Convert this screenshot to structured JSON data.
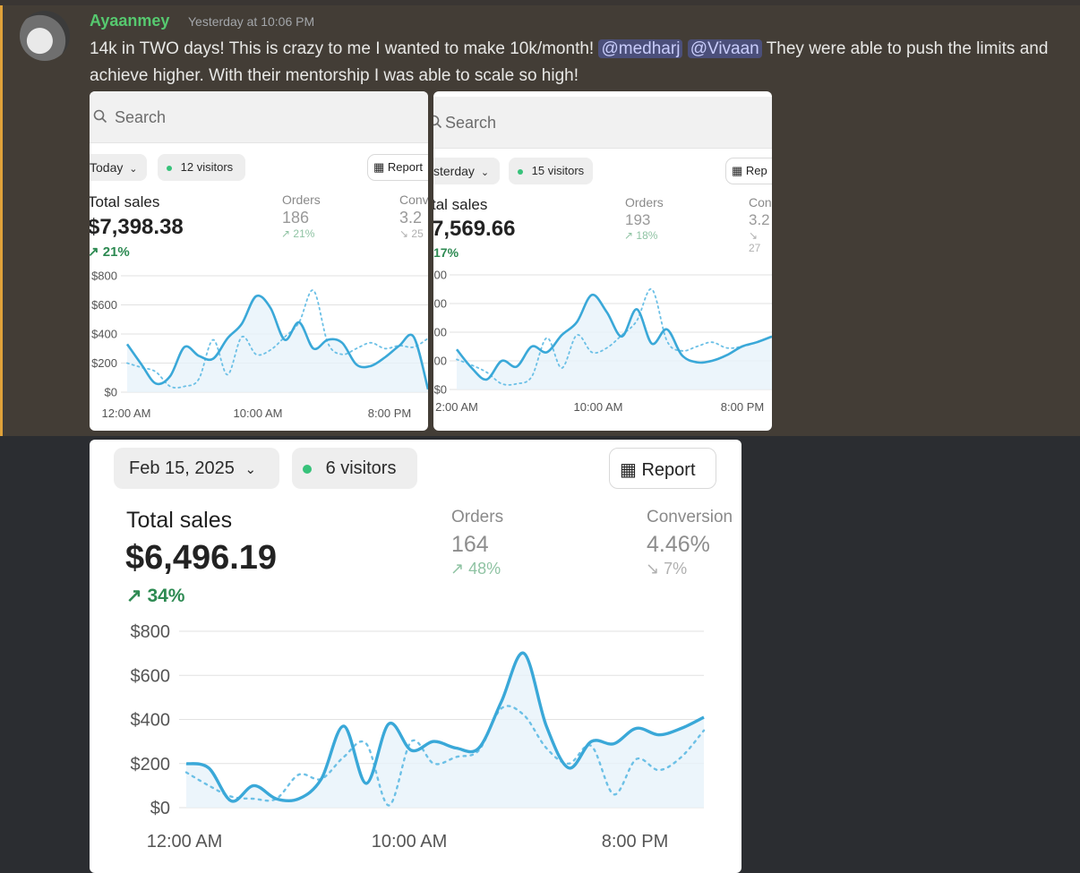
{
  "message": {
    "author": "Ayaanmey",
    "timestamp": "Yesterday at 10:06 PM",
    "text_part1": "14k in TWO days! This is crazy to me I wanted to make 10k/month!",
    "mention1": "@medharj",
    "mention2": "@Vivaan",
    "text_part2": "They were able to push the limits and achieve higher. With their mentorship I was able to scale so high!",
    "accent_color": "#e0a23a",
    "author_color": "#56c96f"
  },
  "shot1": {
    "search_placeholder": "Search",
    "date_filter": "Today",
    "visitors": "12 visitors",
    "report": "Report",
    "total_sales_label": "Total sales",
    "total_sales_value": "$7,398.38",
    "total_sales_change": "21%",
    "orders_label": "Orders",
    "orders_value": "186",
    "orders_change": "21%",
    "conversion_label": "Conv",
    "conversion_value": "3.2",
    "conversion_change": "25",
    "y_ticks": [
      "$800",
      "$600",
      "$400",
      "$200",
      "$0"
    ],
    "x_ticks": [
      "12:00 AM",
      "10:00 AM",
      "8:00 PM"
    ]
  },
  "shot2": {
    "search_placeholder": "Search",
    "date_filter": "sterday",
    "visitors": "15 visitors",
    "report": "Rep",
    "total_sales_label": "tal sales",
    "total_sales_value": "7,569.66",
    "total_sales_change": "17%",
    "orders_label": "Orders",
    "orders_value": "193",
    "orders_change": "18%",
    "conversion_label": "Con",
    "conversion_value": "3.2",
    "conversion_change": "27",
    "y_ticks": [
      "00",
      "00",
      "00",
      "00",
      "$0"
    ],
    "x_ticks": [
      "2:00 AM",
      "10:00 AM",
      "8:00 PM"
    ]
  },
  "shot3": {
    "date_filter": "Feb 15, 2025",
    "visitors": "6 visitors",
    "report": "Report",
    "total_sales_label": "Total sales",
    "total_sales_value": "$6,496.19",
    "total_sales_change": "34%",
    "orders_label": "Orders",
    "orders_value": "164",
    "orders_change": "48%",
    "conversion_label": "Conversion",
    "conversion_value": "4.46%",
    "conversion_change": "7%",
    "y_ticks": [
      "$800",
      "$600",
      "$400",
      "$200",
      "$0"
    ],
    "x_ticks": [
      "12:00 AM",
      "10:00 AM",
      "8:00 PM"
    ]
  },
  "chart_data": [
    {
      "type": "line",
      "ylim": [
        0,
        800
      ],
      "series": [
        {
          "values": [
            330,
            190,
            60,
            110,
            310,
            250,
            230,
            370,
            470,
            660,
            580,
            360,
            480,
            300,
            360,
            340,
            190,
            180,
            240,
            320,
            380,
            20
          ]
        },
        {
          "values": [
            200,
            170,
            140,
            40,
            40,
            90,
            360,
            120,
            380,
            260,
            290,
            380,
            480,
            700,
            340,
            260,
            300,
            340,
            300,
            320,
            310,
            370
          ]
        }
      ]
    },
    {
      "type": "line",
      "ylim": [
        0,
        800
      ],
      "series": [
        {
          "values": [
            280,
            150,
            70,
            200,
            160,
            300,
            260,
            380,
            470,
            660,
            540,
            370,
            560,
            320,
            420,
            240,
            190,
            200,
            240,
            300,
            330,
            370
          ]
        },
        {
          "values": [
            210,
            170,
            120,
            40,
            40,
            90,
            360,
            150,
            380,
            260,
            290,
            380,
            480,
            700,
            340,
            270,
            300,
            330,
            290,
            300,
            330,
            370
          ]
        }
      ]
    },
    {
      "type": "line",
      "ylim": [
        0,
        800
      ],
      "series": [
        {
          "values": [
            200,
            180,
            30,
            100,
            40,
            40,
            130,
            370,
            110,
            380,
            260,
            300,
            270,
            270,
            480,
            700,
            370,
            180,
            300,
            290,
            360,
            330,
            360,
            410
          ]
        },
        {
          "values": [
            160,
            100,
            50,
            40,
            40,
            150,
            130,
            230,
            290,
            10,
            300,
            200,
            230,
            260,
            450,
            420,
            270,
            200,
            280,
            60,
            220,
            170,
            230,
            350
          ]
        }
      ]
    }
  ],
  "colors": {
    "line_solid": "#3aa8d8",
    "line_dotted": "#6cc0e6",
    "area_fill": "#e7f3fa",
    "positive": "#2d8a52",
    "visitor_dot": "#37c27a"
  }
}
